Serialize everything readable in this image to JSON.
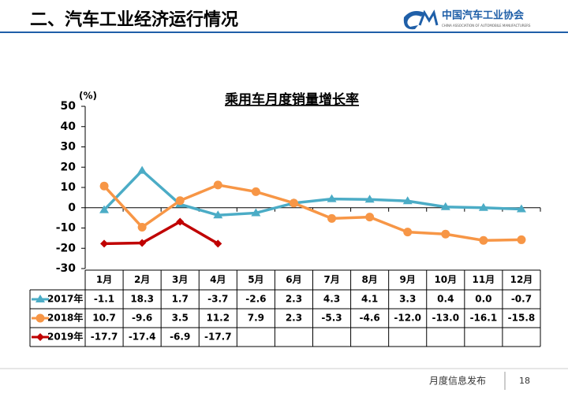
{
  "header": {
    "title": "二、汽车工业经济运行情况",
    "logo": "中国汽车工业协会",
    "logo_en": "CHINA ASSOCIATION OF AUTOMOBILE MANUFACTURERS"
  },
  "footer": {
    "text": "月度信息发布",
    "page": "18"
  },
  "chart_data": {
    "type": "line",
    "title": "乘用车月度销量增长率",
    "y_label": "(%)",
    "categories": [
      "1月",
      "2月",
      "3月",
      "4月",
      "5月",
      "6月",
      "7月",
      "8月",
      "9月",
      "10月",
      "11月",
      "12月"
    ],
    "ylim": [
      -30,
      50
    ],
    "yticks": [
      -30,
      -20,
      -10,
      0,
      10,
      20,
      30,
      40,
      50
    ],
    "grid": false,
    "series": [
      {
        "name": "2017年",
        "color": "#4bacc6",
        "marker": "triangle",
        "values": [
          -1.1,
          18.3,
          1.7,
          -3.7,
          -2.6,
          2.3,
          4.3,
          4.1,
          3.3,
          0.4,
          0.0,
          -0.7
        ],
        "value_labels": [
          "-1.1",
          "18.3",
          "1.7",
          "-3.7",
          "-2.6",
          "2.3",
          "4.3",
          "4.1",
          "3.3",
          "0.4",
          "0.0",
          "-0.7"
        ]
      },
      {
        "name": "2018年",
        "color": "#f79646",
        "marker": "circle",
        "values": [
          10.7,
          -9.6,
          3.5,
          11.2,
          7.9,
          2.3,
          -5.3,
          -4.6,
          -12.0,
          -13.0,
          -16.1,
          -15.8
        ],
        "value_labels": [
          "10.7",
          "-9.6",
          "3.5",
          "11.2",
          "7.9",
          "2.3",
          "-5.3",
          "-4.6",
          "-12.0",
          "-13.0",
          "-16.1",
          "-15.8"
        ]
      },
      {
        "name": "2019年",
        "color": "#c00000",
        "marker": "diamond",
        "values": [
          -17.7,
          -17.4,
          -6.9,
          -17.7,
          null,
          null,
          null,
          null,
          null,
          null,
          null,
          null
        ],
        "value_labels": [
          "-17.7",
          "-17.4",
          "-6.9",
          "-17.7",
          null,
          null,
          null,
          null,
          null,
          null,
          null,
          null
        ]
      }
    ]
  }
}
